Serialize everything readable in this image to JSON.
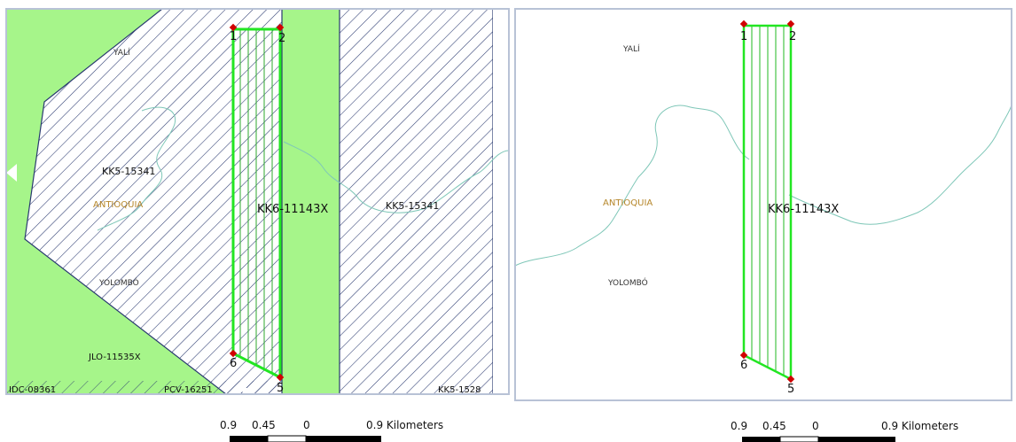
{
  "left_map": {
    "place_labels": {
      "yali": "YALÍ",
      "antioquia": "ANTIOQUIA",
      "yolombo": "YOLOMBÓ"
    },
    "parcel_labels": {
      "kk5_left": "KK5-15341",
      "kk5_right": "KK5-15341",
      "jlo": "JLO-11535X",
      "idc": "IDC-08361",
      "pcv": "PCV-16251",
      "kk5_bottom": "KK5-1528"
    },
    "polygon_label": "KK6-11143X",
    "vertices": {
      "v1": "1",
      "v2": "2",
      "v6": "6",
      "v5": "5"
    }
  },
  "right_map": {
    "place_labels": {
      "yali": "YALÍ",
      "antioquia": "ANTIOQUIA",
      "yolombo": "YOLOMBÓ"
    },
    "polygon_label": "KK6-11143X",
    "vertices": {
      "v1": "1",
      "v2": "2",
      "v6": "6",
      "v5": "5"
    }
  },
  "scale_bar_left": {
    "ticks": [
      "0.9",
      "0.45",
      "0"
    ],
    "end_label": "0.9 Kilometers"
  },
  "scale_bar_right": {
    "ticks": [
      "0.9",
      "0.45",
      "0"
    ],
    "end_label": "0.9 Kilometers"
  },
  "colors": {
    "land_green": "#a6f58a",
    "hatch_navy": "#2a3a70",
    "polygon_green": "#22e622",
    "vertex_red": "#d10000",
    "river": "#7fc7b8",
    "frame": "#b8c2d6",
    "place_label": "#b5862a"
  }
}
